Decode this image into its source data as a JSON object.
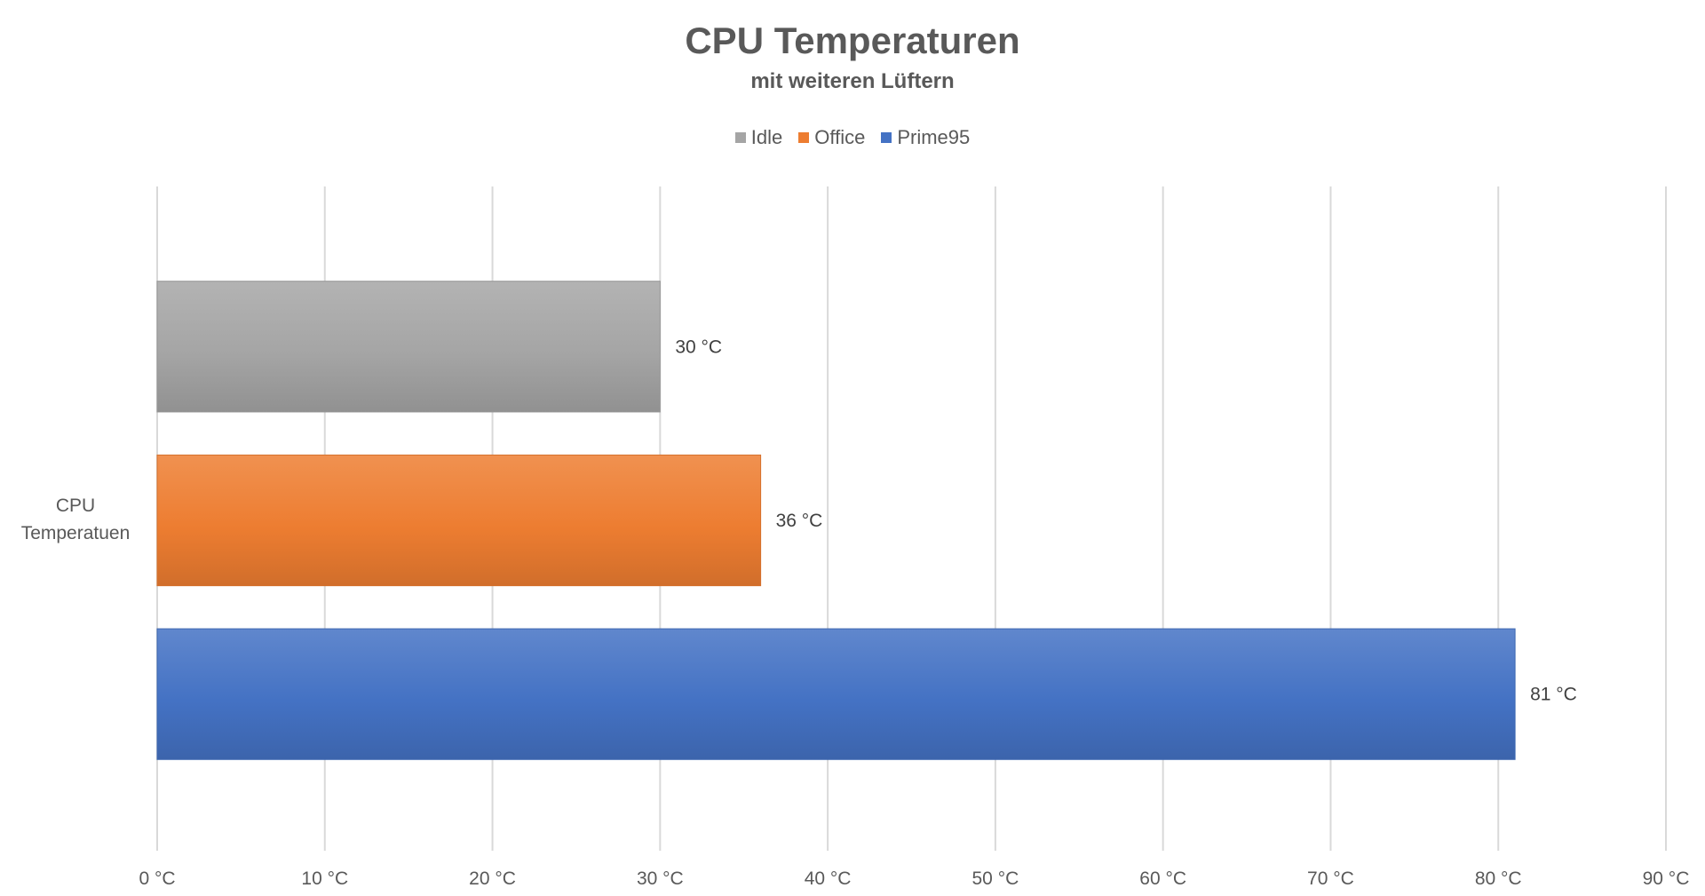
{
  "chart_data": {
    "type": "bar",
    "orientation": "horizontal",
    "title": "CPU Temperaturen",
    "subtitle": "mit weiteren Lüftern",
    "categories": [
      "CPU Temperatuen"
    ],
    "category_lines": [
      "CPU",
      "Temperatuen"
    ],
    "series": [
      {
        "name": "Idle",
        "values": [
          30
        ],
        "label": "30 °C",
        "color": "#A5A5A5"
      },
      {
        "name": "Office",
        "values": [
          36
        ],
        "label": "36 °C",
        "color": "#ED7D31"
      },
      {
        "name": "Prime95",
        "values": [
          81
        ],
        "label": "81 °C",
        "color": "#4472C4"
      }
    ],
    "xlim": [
      0,
      90
    ],
    "x_ticks": [
      {
        "value": 0,
        "label": "0 °C"
      },
      {
        "value": 10,
        "label": "10 °C"
      },
      {
        "value": 20,
        "label": "20 °C"
      },
      {
        "value": 30,
        "label": "30 °C"
      },
      {
        "value": 40,
        "label": "40 °C"
      },
      {
        "value": 50,
        "label": "50 °C"
      },
      {
        "value": 60,
        "label": "60 °C"
      },
      {
        "value": 70,
        "label": "70 °C"
      },
      {
        "value": 80,
        "label": "80 °C"
      },
      {
        "value": 90,
        "label": "90 °C"
      }
    ],
    "grid": true,
    "legend_position": "top"
  }
}
